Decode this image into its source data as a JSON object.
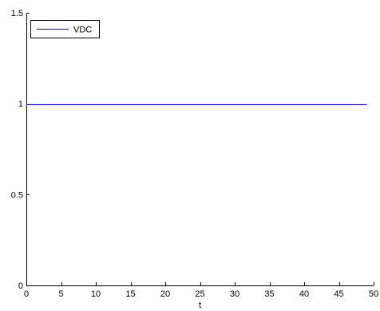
{
  "chart_data": {
    "type": "line",
    "title": "",
    "xlabel": "t",
    "ylabel": "",
    "xlim": [
      0,
      50
    ],
    "ylim": [
      0,
      1.5
    ],
    "xticks": [
      0,
      5,
      10,
      15,
      20,
      25,
      30,
      35,
      40,
      45,
      50
    ],
    "yticks": [
      0,
      0.5,
      1,
      1.5
    ],
    "grid": false,
    "legend_position": "top-left",
    "series": [
      {
        "name": "VDC",
        "color": "#0000ff",
        "x": [
          0,
          49
        ],
        "y": [
          1,
          1
        ]
      }
    ]
  }
}
